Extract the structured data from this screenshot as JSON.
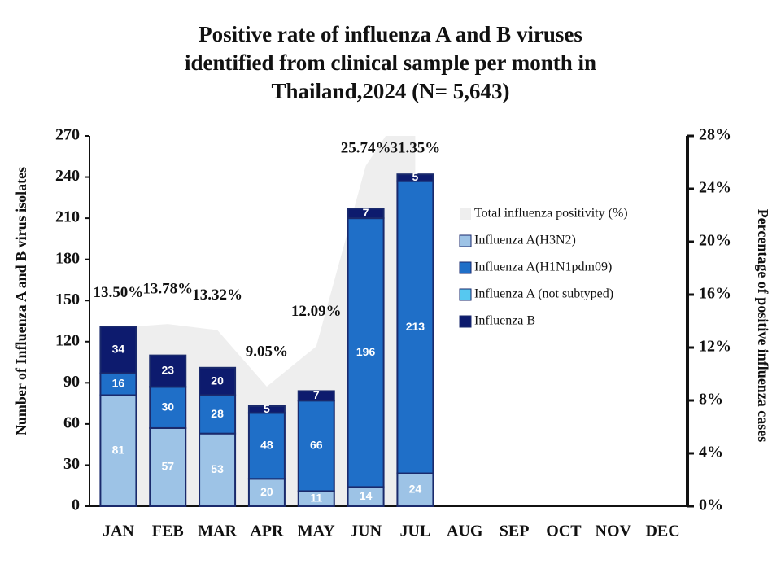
{
  "chart_data": {
    "type": "bar",
    "title": [
      "Positive rate of influenza A and B viruses",
      "identified from clinical sample per month in",
      "Thailand,2024 (N= 5,643)"
    ],
    "y_label": "Number of Influenza A and B virus isolates",
    "y2_label": "Percentage of positive influenza cases",
    "stacked": true,
    "categories": [
      "JAN",
      "FEB",
      "MAR",
      "APR",
      "MAY",
      "JUN",
      "JUL",
      "AUG",
      "SEP",
      "OCT",
      "NOV",
      "DEC"
    ],
    "series": [
      {
        "name": "Total influenza positivity (%)",
        "type": "area",
        "axis": "y2",
        "color": "#eeeeee",
        "values": [
          13.5,
          13.78,
          13.32,
          9.05,
          12.09,
          25.74,
          31.35,
          null,
          null,
          null,
          null,
          null
        ],
        "value_labels": [
          "13.50%",
          "13.78%",
          "13.32%",
          "9.05%",
          "12.09%",
          "25.74%",
          "31.35%",
          null,
          null,
          null,
          null,
          null
        ]
      },
      {
        "name": "Influenza A(H3N2)",
        "color": "#9dc3e6",
        "values": [
          81,
          57,
          53,
          20,
          11,
          14,
          24,
          null,
          null,
          null,
          null,
          null
        ]
      },
      {
        "name": "Influenza A(H1N1pdm09)",
        "color": "#1f6fc8",
        "values": [
          16,
          30,
          28,
          48,
          66,
          196,
          213,
          null,
          null,
          null,
          null,
          null
        ]
      },
      {
        "name": "Influenza A (not subtyped)",
        "color": "#56c8f0",
        "values": [
          0,
          0,
          0,
          0,
          0,
          0,
          0,
          null,
          null,
          null,
          null,
          null
        ]
      },
      {
        "name": "Influenza B",
        "color": "#0d1b6e",
        "values": [
          34,
          23,
          20,
          5,
          7,
          7,
          5,
          null,
          null,
          null,
          null,
          null
        ]
      }
    ],
    "ylim": [
      0,
      270
    ],
    "yticks": [
      0,
      30,
      60,
      90,
      120,
      150,
      180,
      210,
      240,
      270
    ],
    "y2lim": [
      0,
      28
    ],
    "y2ticks": [
      {
        "value": 0,
        "label": "0%"
      },
      {
        "value": 4,
        "label": "4%"
      },
      {
        "value": 8,
        "label": "8%"
      },
      {
        "value": 12,
        "label": "12%"
      },
      {
        "value": 16,
        "label": "16%"
      },
      {
        "value": 20,
        "label": "20%"
      },
      {
        "value": 24,
        "label": "24%"
      },
      {
        "value": 28,
        "label": "28%"
      }
    ],
    "legend": "right"
  }
}
